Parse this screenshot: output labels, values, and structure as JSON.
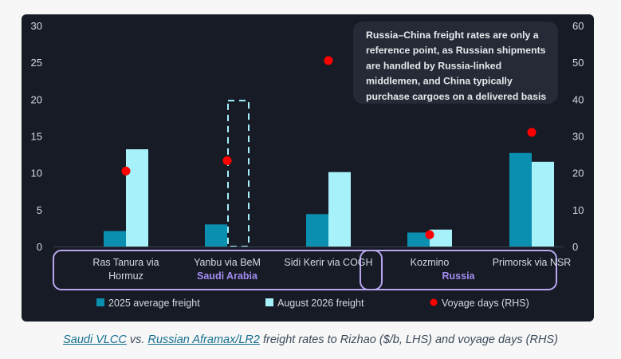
{
  "chart_data": {
    "type": "bar",
    "categories": [
      [
        "Ras Tanura via",
        "Hormuz"
      ],
      [
        "Yanbu via BeM"
      ],
      [
        "Sidi Kerir via COGH"
      ],
      [
        "Kozmino"
      ],
      [
        "Primorsk via NSR"
      ]
    ],
    "groups": [
      {
        "label": "Saudi Arabia",
        "categories": [
          0,
          1
        ]
      },
      {
        "label": "Russia",
        "categories": [
          3,
          4
        ]
      }
    ],
    "series": [
      {
        "name": "2025 average freight",
        "type": "bar",
        "axis": "left",
        "color": "#0b8fb0",
        "values": [
          2.1,
          3.0,
          4.4,
          1.9,
          12.7
        ]
      },
      {
        "name": "August 2026 freight",
        "type": "bar",
        "axis": "left",
        "color": "#a7f1fb",
        "values": [
          13.2,
          null,
          10.1,
          2.3,
          11.5
        ]
      },
      {
        "name": "Voyage days (RHS)",
        "type": "scatter",
        "axis": "right",
        "color": "#ff0000",
        "values": [
          20.5,
          23.3,
          50.5,
          3.2,
          31.0
        ]
      }
    ],
    "dashed_placeholder": {
      "category": 1,
      "series": 1,
      "value": 19.8
    },
    "y_left": {
      "range": [
        0,
        30
      ],
      "ticks": [
        "0",
        "5",
        "10",
        "15",
        "20",
        "25",
        "30"
      ]
    },
    "y_right": {
      "range": [
        0,
        60
      ],
      "ticks": [
        "0",
        "10",
        "20",
        "30",
        "40",
        "50",
        "60"
      ]
    },
    "annotation": [
      "Russia–China freight rates are only a",
      "reference point, as Russian shipments",
      "are handled by Russia-linked",
      "middlemen, and China typically",
      "purchase cargoes on a delivered basis"
    ],
    "legend_position": "bottom",
    "grid": false,
    "colors": {
      "background": "#161b26",
      "text": "#d5d9df",
      "group_border": "#b9a6ef",
      "group_label": "#a48df2",
      "note_bg": "#262a36"
    }
  },
  "caption": {
    "link1": "Saudi VLCC",
    "text1": " vs. ",
    "link2": "Russian Aframax/LR2",
    "text2": " freight rates to Rizhao ($/b, LHS) and voyage days (RHS)"
  }
}
